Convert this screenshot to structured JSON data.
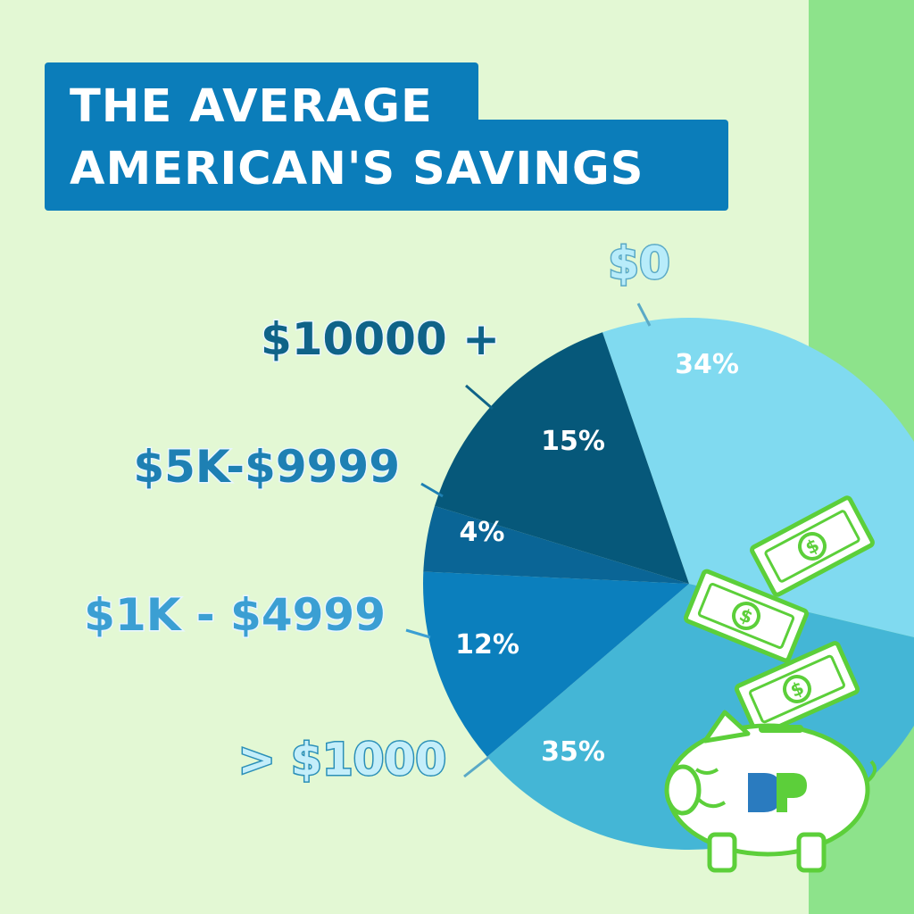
{
  "title": {
    "line1": "THE AVERAGE",
    "line2": "AMERICAN'S SAVINGS"
  },
  "colors": {
    "background": "#e3f8d4",
    "right_band": "#8de38b",
    "title_bg": "#0b7dba",
    "title_text": "#ffffff",
    "money_green": "#5ccf3a"
  },
  "icons": [
    "dollar-bill-icon",
    "dollar-bill-icon",
    "dollar-bill-icon",
    "piggy-bank-icon",
    "brand-logo-icon"
  ],
  "chart_data": {
    "type": "pie",
    "title": "THE AVERAGE AMERICAN'S SAVINGS",
    "slices": [
      {
        "label": "$0",
        "value": 34,
        "value_label": "34%",
        "color": "#80daf0"
      },
      {
        "label": "> $1000",
        "value": 35,
        "value_label": "35%",
        "color": "#44b6d6"
      },
      {
        "label": "$1K - $4999",
        "value": 12,
        "value_label": "12%",
        "color": "#0b7fbd"
      },
      {
        "label": "$5K-$9999",
        "value": 4,
        "value_label": "4%",
        "color": "#0a6596"
      },
      {
        "label": "$10000 +",
        "value": 15,
        "value_label": "15%",
        "color": "#06587a"
      }
    ],
    "legend": "none"
  }
}
